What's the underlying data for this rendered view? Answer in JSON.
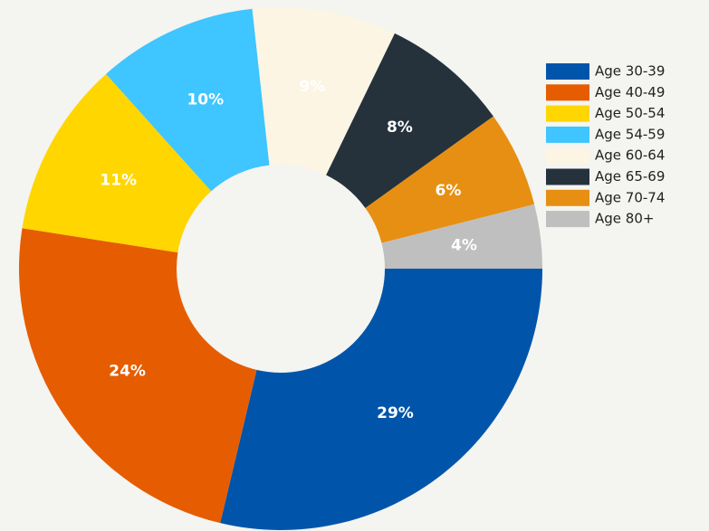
{
  "chart_data": {
    "type": "donut",
    "categories": [
      "Age 30-39",
      "Age 40-49",
      "Age 50-54",
      "Age 54-59",
      "Age 60-64",
      "Age 65-69",
      "Age 70-74",
      "Age 80+"
    ],
    "values": [
      29,
      24,
      11,
      10,
      9,
      8,
      6,
      4
    ],
    "value_labels": [
      "29%",
      "24%",
      "11%",
      "10%",
      "9%",
      "8%",
      "6%",
      "4%"
    ],
    "colors": [
      "#0055aa",
      "#e65c00",
      "#ffd600",
      "#3fc5ff",
      "#fcf5e3",
      "#25323c",
      "#e78f12",
      "#bfbfbf"
    ],
    "legend": "right"
  }
}
